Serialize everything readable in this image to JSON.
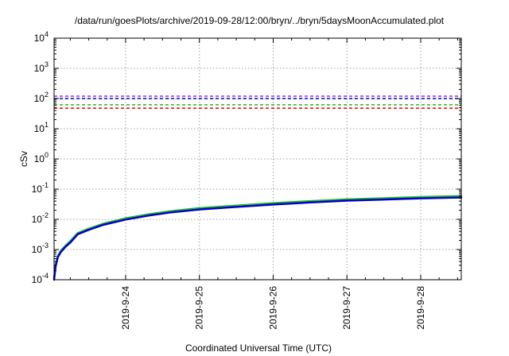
{
  "chart_data": {
    "type": "line",
    "title": "/data/run/goesPlots/archive/2019-09-28/12:00/bryn/../bryn/5daysMoonAccumulated.plot",
    "xlabel": "Coordinated Universal Time (UTC)",
    "ylabel": "cSv",
    "y_scale": "log",
    "ylim": [
      0.0001,
      10000
    ],
    "xlim": [
      23.03,
      28.55
    ],
    "grid": true,
    "legend": "none",
    "x_ticks": [
      {
        "value": 24,
        "label": "2019-9-24"
      },
      {
        "value": 25,
        "label": "2019-9-25"
      },
      {
        "value": 26,
        "label": "2019-9-26"
      },
      {
        "value": 27,
        "label": "2019-9-27"
      },
      {
        "value": 28,
        "label": "2019-9-28"
      }
    ],
    "y_ticks": [
      {
        "value": 0.0001,
        "base": "10",
        "exp": "-4"
      },
      {
        "value": 0.001,
        "base": "10",
        "exp": "-3"
      },
      {
        "value": 0.01,
        "base": "10",
        "exp": "-2"
      },
      {
        "value": 0.1,
        "base": "10",
        "exp": "-1"
      },
      {
        "value": 1,
        "base": "10",
        "exp": "0"
      },
      {
        "value": 10,
        "base": "10",
        "exp": "1"
      },
      {
        "value": 100,
        "base": "10",
        "exp": "2"
      },
      {
        "value": 1000,
        "base": "10",
        "exp": "3"
      },
      {
        "value": 10000,
        "base": "10",
        "exp": "4"
      }
    ],
    "reference_lines": [
      {
        "value": 120,
        "color": "#9933cc",
        "style": "dashed"
      },
      {
        "value": 100,
        "color": "#0000dd",
        "style": "dashed"
      },
      {
        "value": 62,
        "color": "#22bb22",
        "style": "dashed"
      },
      {
        "value": 48,
        "color": "#ee0000",
        "style": "dashed"
      }
    ],
    "series": [
      {
        "color": "#22bb22",
        "x": [
          23.03,
          23.05,
          23.08,
          23.12,
          23.18,
          23.25,
          23.35,
          23.5,
          23.7,
          24.0,
          24.3,
          24.6,
          25.0,
          25.5,
          26.0,
          26.5,
          27.0,
          27.5,
          28.0,
          28.55
        ],
        "y": [
          0.00012,
          0.0003,
          0.0006,
          0.0009,
          0.0013,
          0.0019,
          0.0035,
          0.0049,
          0.0072,
          0.0108,
          0.0145,
          0.0185,
          0.0235,
          0.0285,
          0.0345,
          0.04,
          0.046,
          0.05,
          0.055,
          0.059
        ]
      },
      {
        "color": "#0000cc",
        "x": [
          23.03,
          23.05,
          23.08,
          23.12,
          23.18,
          23.25,
          23.35,
          23.5,
          23.7,
          24.0,
          24.3,
          24.6,
          25.0,
          25.5,
          26.0,
          26.5,
          27.0,
          27.5,
          28.0,
          28.55
        ],
        "y": [
          0.0001,
          0.00027,
          0.00055,
          0.00082,
          0.0012,
          0.0017,
          0.0032,
          0.0045,
          0.0066,
          0.0098,
          0.0132,
          0.0168,
          0.0212,
          0.0258,
          0.031,
          0.0362,
          0.0415,
          0.0452,
          0.0496,
          0.053
        ]
      }
    ],
    "colors": {
      "frame": "#000000",
      "grid": "#a0a0a0"
    }
  }
}
